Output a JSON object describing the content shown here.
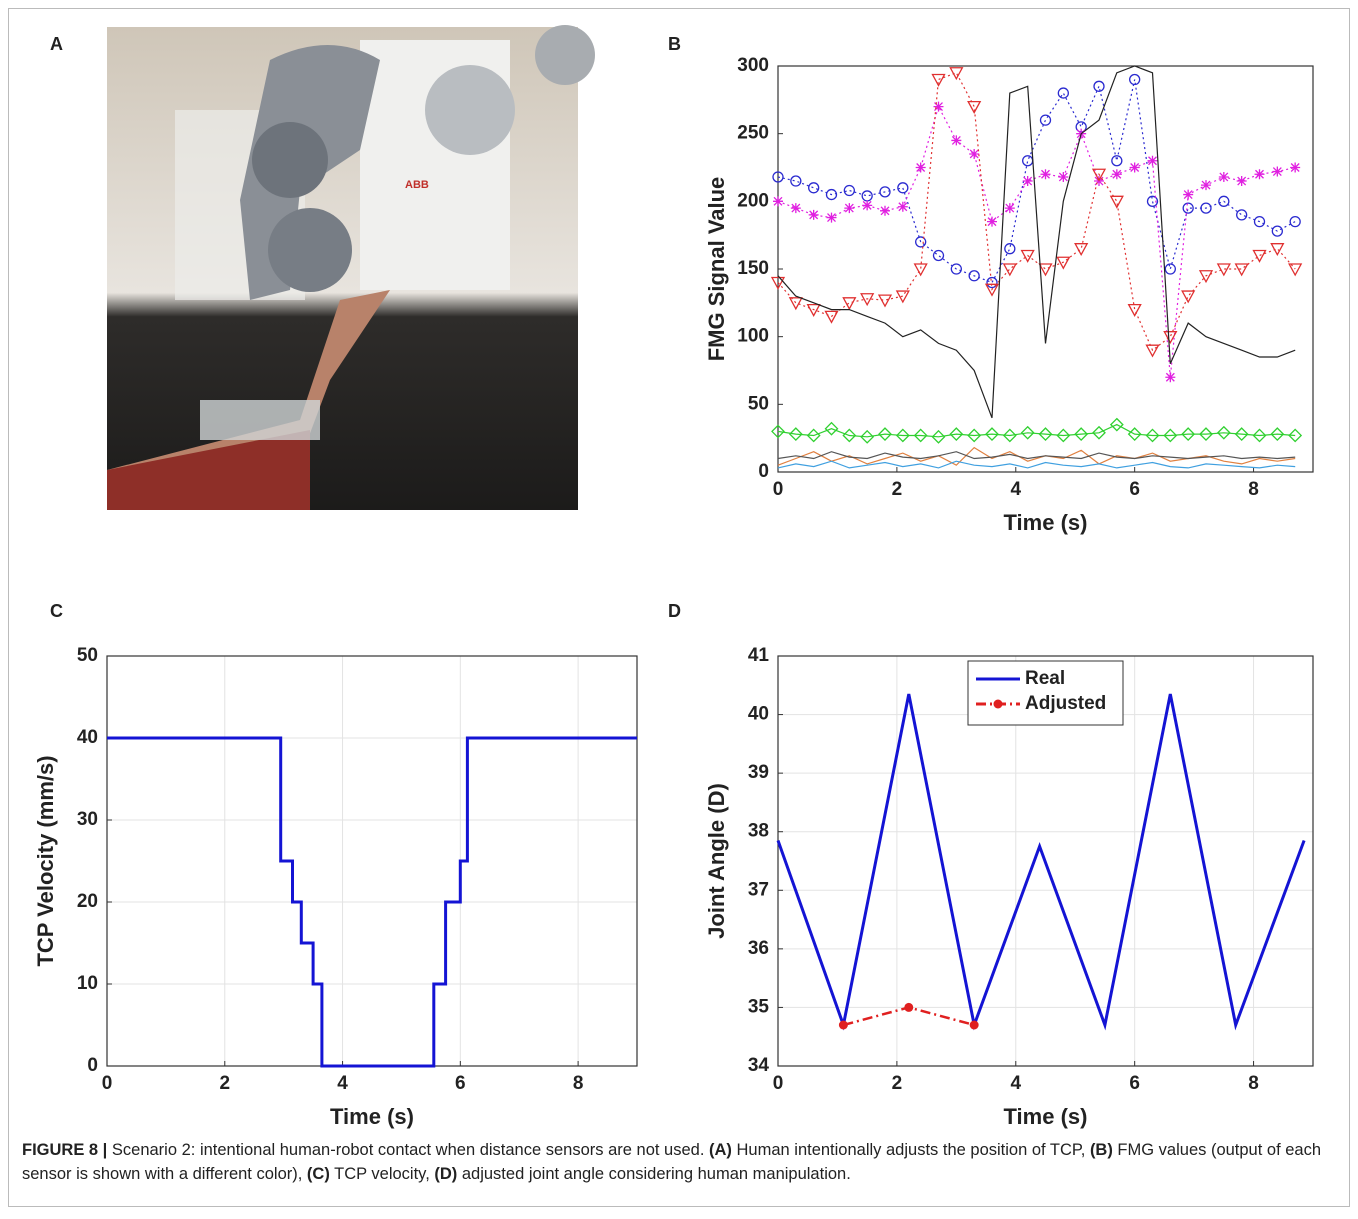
{
  "panels": [
    "A",
    "B",
    "C",
    "D"
  ],
  "photo": {
    "sign": "ABB"
  },
  "chart_data": [
    {
      "type": "line",
      "ylabel": "FMG Signal Value",
      "xlabel": "Time (s)",
      "xlim": [
        0,
        9
      ],
      "ylim": [
        0,
        300
      ],
      "xticks": [
        0,
        2,
        4,
        6,
        8
      ],
      "yticks": [
        0,
        50,
        100,
        150,
        200,
        250,
        300
      ],
      "grid": false,
      "x": [
        0,
        0.3,
        0.6,
        0.9,
        1.2,
        1.5,
        1.8,
        2.1,
        2.4,
        2.7,
        3.0,
        3.3,
        3.6,
        3.9,
        4.2,
        4.5,
        4.8,
        5.1,
        5.4,
        5.7,
        6.0,
        6.3,
        6.6,
        6.9,
        7.2,
        7.5,
        7.8,
        8.1,
        8.4,
        8.7
      ],
      "series": [
        {
          "color": "#2b2bd0",
          "marker": "circle",
          "line_style": "dotted",
          "values": [
            218,
            215,
            210,
            205,
            208,
            204,
            207,
            210,
            170,
            160,
            150,
            145,
            140,
            165,
            230,
            260,
            280,
            255,
            285,
            230,
            290,
            200,
            150,
            195,
            195,
            200,
            190,
            185,
            178,
            185
          ]
        },
        {
          "color": "#e020e0",
          "marker": "star",
          "line_style": "dotted",
          "values": [
            200,
            195,
            190,
            188,
            195,
            197,
            193,
            196,
            225,
            270,
            245,
            235,
            185,
            195,
            215,
            220,
            218,
            250,
            215,
            220,
            225,
            230,
            70,
            205,
            212,
            218,
            215,
            220,
            222,
            225
          ]
        },
        {
          "color": "#e03030",
          "marker": "triangle",
          "line_style": "dotted",
          "values": [
            140,
            125,
            120,
            115,
            125,
            128,
            127,
            130,
            150,
            290,
            295,
            270,
            135,
            150,
            160,
            150,
            155,
            165,
            220,
            200,
            120,
            90,
            100,
            130,
            145,
            150,
            150,
            160,
            165,
            150
          ]
        },
        {
          "color": "#222222",
          "marker": "none",
          "line_style": "solid",
          "values": [
            145,
            130,
            125,
            120,
            120,
            115,
            110,
            100,
            105,
            95,
            90,
            75,
            40,
            280,
            285,
            95,
            200,
            250,
            260,
            295,
            300,
            295,
            80,
            110,
            100,
            95,
            90,
            85,
            85,
            90
          ]
        },
        {
          "color": "#30d030",
          "marker": "diamond",
          "line_style": "solid",
          "values": [
            30,
            28,
            27,
            32,
            27,
            26,
            28,
            27,
            27,
            26,
            28,
            27,
            28,
            27,
            29,
            28,
            27,
            28,
            29,
            35,
            28,
            27,
            27,
            28,
            28,
            29,
            28,
            27,
            28,
            27
          ]
        },
        {
          "color": "#e08040",
          "marker": "none",
          "line_style": "solid",
          "values": [
            5,
            10,
            15,
            8,
            12,
            6,
            10,
            14,
            8,
            12,
            5,
            18,
            10,
            15,
            8,
            12,
            10,
            16,
            6,
            12,
            10,
            14,
            8,
            10,
            12,
            8,
            6,
            10,
            8,
            10
          ]
        },
        {
          "color": "#40a0e0",
          "marker": "none",
          "line_style": "solid",
          "values": [
            3,
            6,
            4,
            8,
            3,
            5,
            7,
            4,
            6,
            3,
            8,
            5,
            4,
            6,
            3,
            7,
            5,
            4,
            6,
            3,
            5,
            7,
            4,
            3,
            6,
            5,
            4,
            3,
            5,
            4
          ]
        },
        {
          "color": "#555555",
          "marker": "none",
          "line_style": "solid",
          "values": [
            10,
            12,
            10,
            15,
            11,
            10,
            14,
            11,
            10,
            12,
            15,
            10,
            11,
            13,
            10,
            12,
            11,
            10,
            14,
            11,
            10,
            12,
            11,
            10,
            11,
            12,
            10,
            11,
            10,
            11
          ]
        }
      ]
    },
    {
      "type": "line",
      "ylabel": "TCP Velocity (mm/s)",
      "xlabel": "Time (s)",
      "xlim": [
        0,
        9
      ],
      "ylim": [
        0,
        50
      ],
      "xticks": [
        0,
        2,
        4,
        6,
        8
      ],
      "yticks": [
        0,
        10,
        20,
        30,
        40,
        50
      ],
      "grid": true,
      "x": [
        0,
        2.95,
        2.95,
        3.15,
        3.15,
        3.3,
        3.3,
        3.5,
        3.5,
        3.65,
        3.65,
        5.55,
        5.55,
        5.75,
        5.75,
        6.0,
        6.0,
        6.12,
        6.12,
        9
      ],
      "series": [
        {
          "color": "#1414d4",
          "marker": "none",
          "line_style": "solid",
          "values": [
            40,
            40,
            25,
            25,
            20,
            20,
            15,
            15,
            10,
            10,
            0,
            0,
            10,
            10,
            20,
            20,
            25,
            25,
            40,
            40
          ]
        }
      ]
    },
    {
      "type": "line",
      "ylabel": "Joint Angle (D)",
      "xlabel": "Time (s)",
      "xlim": [
        0,
        9
      ],
      "ylim": [
        34,
        41
      ],
      "xticks": [
        0,
        2,
        4,
        6,
        8
      ],
      "yticks": [
        34,
        35,
        36,
        37,
        38,
        39,
        40,
        41
      ],
      "grid": true,
      "legend": "upper center",
      "x": [
        0,
        1.1,
        2.2,
        3.3,
        4.4,
        5.5,
        6.6,
        7.7,
        8.85
      ],
      "series": [
        {
          "name": "Real",
          "color": "#1414d4",
          "marker": "none",
          "line_style": "solid",
          "values": [
            37.85,
            34.7,
            40.35,
            34.7,
            37.75,
            34.7,
            40.35,
            34.7,
            37.85
          ]
        },
        {
          "name": "Adjusted",
          "color": "#e02020",
          "marker": "dot",
          "line_style": "dash-dot",
          "values": [
            null,
            34.7,
            35.0,
            34.7,
            null,
            null,
            null,
            null,
            null
          ]
        }
      ]
    }
  ],
  "caption": [
    {
      "text": "FIGURE 8 | ",
      "bold": true
    },
    {
      "text": "Scenario 2: intentional human-robot contact when distance sensors are not used. ",
      "bold": false
    },
    {
      "text": "(A)",
      "bold": true
    },
    {
      "text": " Human intentionally adjusts the position of TCP, ",
      "bold": false
    },
    {
      "text": "(B)",
      "bold": true
    },
    {
      "text": " FMG values (output of each sensor is shown with a different color), ",
      "bold": false
    },
    {
      "text": "(C)",
      "bold": true
    },
    {
      "text": " TCP velocity, ",
      "bold": false
    },
    {
      "text": "(D)",
      "bold": true
    },
    {
      "text": " adjusted joint angle considering human manipulation.",
      "bold": false
    }
  ]
}
